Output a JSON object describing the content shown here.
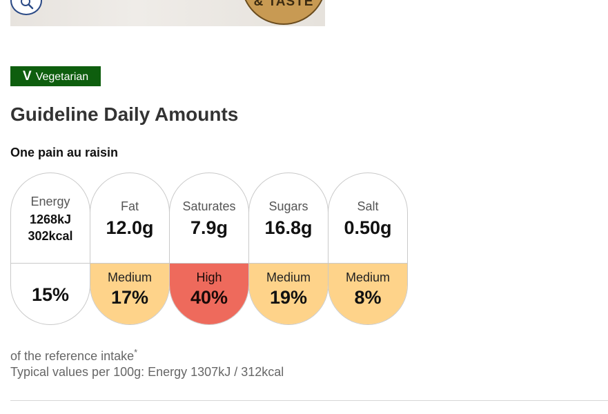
{
  "hero": {
    "zoom_icon": "search-icon",
    "badge_text": "& TASTE"
  },
  "tag": {
    "letter": "V",
    "label": "Vegetarian",
    "color": "#0e5e0e"
  },
  "title": "Guideline Daily Amounts",
  "serving": "One pain au raisin",
  "gda": {
    "energy": {
      "name": "Energy",
      "kj": "1268kJ",
      "kcal": "302kcal",
      "percent": "15%"
    },
    "nutrients": [
      {
        "name": "Fat",
        "amount": "12.0g",
        "level": "Medium",
        "percent": "17%",
        "color": "#fed38a"
      },
      {
        "name": "Saturates",
        "amount": "7.9g",
        "level": "High",
        "percent": "40%",
        "color": "#ee6a5c"
      },
      {
        "name": "Sugars",
        "amount": "16.8g",
        "level": "Medium",
        "percent": "19%",
        "color": "#fed38a"
      },
      {
        "name": "Salt",
        "amount": "0.50g",
        "level": "Medium",
        "percent": "8%",
        "color": "#fed38a"
      }
    ]
  },
  "reference": {
    "text": "of the reference intake",
    "mark": "*"
  },
  "typical_values": "Typical values per 100g: Energy 1307kJ / 312kcal"
}
